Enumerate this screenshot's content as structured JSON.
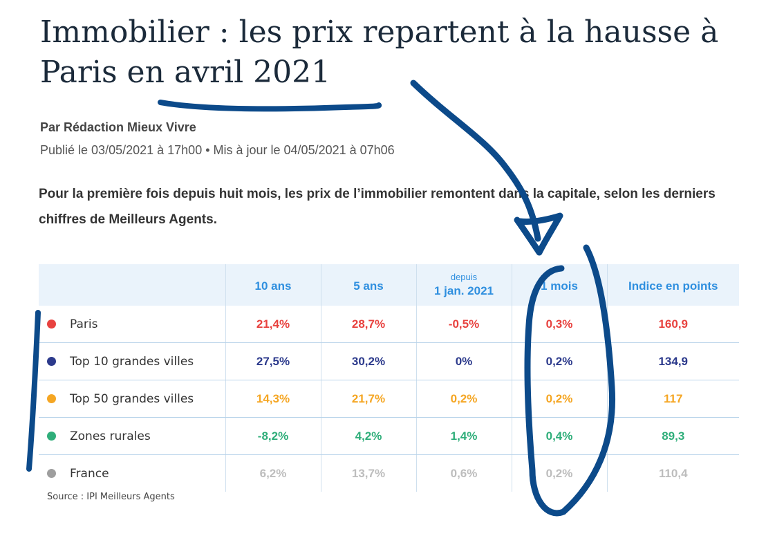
{
  "article": {
    "title": "Immobilier : les prix repartent à la hausse à Paris en avril 2021",
    "byline": "Par Rédaction Mieux Vivre",
    "dates": "Publié le 03/05/2021 à 17h00 • Mis à jour le 04/05/2021 à 07h06",
    "lead": "Pour la première fois depuis huit mois, les prix de l’immobilier remontent dans la capitale, selon les derniers chiffres de Meilleurs Agents."
  },
  "table": {
    "headers": [
      {
        "sup": "",
        "label": "10 ans"
      },
      {
        "sup": "",
        "label": "5 ans"
      },
      {
        "sup": "depuis",
        "label": "1 jan. 2021"
      },
      {
        "sup": "",
        "label": "1 mois"
      },
      {
        "sup": "",
        "label": "Indice en points"
      }
    ],
    "rows": [
      {
        "name": "Paris",
        "color": "#e8423f",
        "values": [
          "21,4%",
          "28,7%",
          "-0,5%",
          "0,3%",
          "160,9"
        ]
      },
      {
        "name": "Top 10 grandes villes",
        "color": "#2c3a8c",
        "values": [
          "27,5%",
          "30,2%",
          "0%",
          "0,2%",
          "134,9"
        ]
      },
      {
        "name": "Top 50 grandes villes",
        "color": "#f5a623",
        "values": [
          "14,3%",
          "21,7%",
          "0,2%",
          "0,2%",
          "117"
        ]
      },
      {
        "name": "Zones rurales",
        "color": "#2fae7a",
        "values": [
          "-8,2%",
          "4,2%",
          "1,4%",
          "0,4%",
          "89,3"
        ]
      },
      {
        "name": "France",
        "color": "#bdbdbd",
        "dot_color": "#9e9e9e",
        "values": [
          "6,2%",
          "13,7%",
          "0,6%",
          "0,2%",
          "110,4"
        ]
      }
    ],
    "source": "Source : IPI Meilleurs Agents"
  },
  "annotation": {
    "ink_color": "#0c4a8a"
  }
}
